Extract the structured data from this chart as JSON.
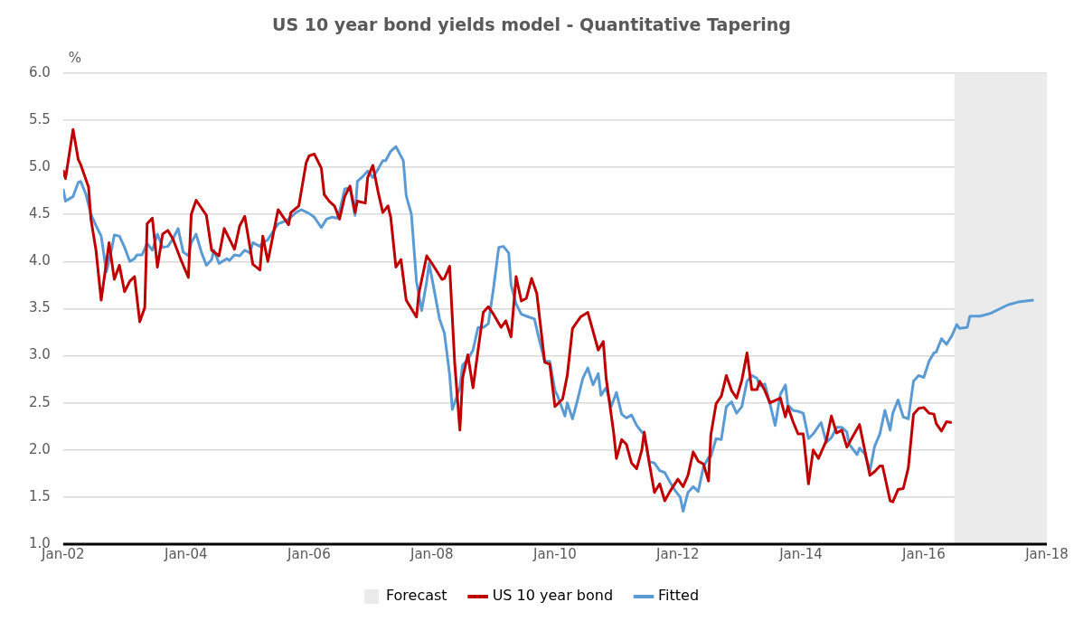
{
  "chart_data": {
    "type": "line",
    "title": "US 10 year bond yields model - Quantitative Tapering",
    "ylabel": "%",
    "xlim": [
      "2002-01-01",
      "2018-01-01"
    ],
    "xticks": [
      {
        "value": "2002-01-01",
        "label": "Jan-02"
      },
      {
        "value": "2004-01-01",
        "label": "Jan-04"
      },
      {
        "value": "2006-01-01",
        "label": "Jan-06"
      },
      {
        "value": "2008-01-01",
        "label": "Jan-08"
      },
      {
        "value": "2010-01-01",
        "label": "Jan-10"
      },
      {
        "value": "2012-01-01",
        "label": "Jan-12"
      },
      {
        "value": "2014-01-01",
        "label": "Jan-14"
      },
      {
        "value": "2016-01-01",
        "label": "Jan-16"
      },
      {
        "value": "2018-01-01",
        "label": "Jan-18"
      }
    ],
    "ylim": [
      1,
      6
    ],
    "yticks": [
      {
        "value": 1,
        "label": "1.0"
      },
      {
        "value": 1.5,
        "label": "1.5"
      },
      {
        "value": 2,
        "label": "2.0"
      },
      {
        "value": 2.5,
        "label": "2.5"
      },
      {
        "value": 3,
        "label": "3.0"
      },
      {
        "value": 3.5,
        "label": "3.5"
      },
      {
        "value": 4,
        "label": "4.0"
      },
      {
        "value": 4.5,
        "label": "4.5"
      },
      {
        "value": 5,
        "label": "5.0"
      },
      {
        "value": 5.5,
        "label": "5.5"
      },
      {
        "value": 6,
        "label": "6.0"
      }
    ],
    "grid": "y",
    "legend": "bottom",
    "line_style": "solid",
    "marker": "none",
    "bands": [
      {
        "axis": "x",
        "from": "2016-07-01",
        "to": "2018-01-01",
        "label": "Forecast",
        "color": "#ebebeb"
      }
    ],
    "series": [
      {
        "name": "US 10 year bond",
        "color": "#c00000",
        "x": [
          "2002-01-01",
          "2002-01-15",
          "2002-03-01",
          "2002-04-01",
          "2002-04-15",
          "2002-06-01",
          "2002-06-15",
          "2002-07-15",
          "2002-08-15",
          "2002-10-01",
          "2002-11-01",
          "2002-12-01",
          "2003-01-01",
          "2003-02-01",
          "2003-03-01",
          "2003-04-01",
          "2003-05-01",
          "2003-05-15",
          "2003-06-15",
          "2003-07-15",
          "2003-08-15",
          "2003-09-15",
          "2003-10-15",
          "2003-12-01",
          "2004-01-15",
          "2004-02-01",
          "2004-03-01",
          "2004-05-01",
          "2004-06-01",
          "2004-07-15",
          "2004-08-15",
          "2004-10-15",
          "2004-11-15",
          "2004-12-15",
          "2005-02-01",
          "2005-03-15",
          "2005-04-01",
          "2005-05-01",
          "2005-07-01",
          "2005-09-01",
          "2005-09-15",
          "2005-11-01",
          "2005-12-15",
          "2006-01-01",
          "2006-02-01",
          "2006-03-15",
          "2006-04-01",
          "2006-05-01",
          "2006-06-01",
          "2006-07-01",
          "2006-08-01",
          "2006-09-01",
          "2006-10-01",
          "2006-10-15",
          "2006-12-01",
          "2006-12-15",
          "2007-01-15",
          "2007-02-15",
          "2007-03-15",
          "2007-04-15",
          "2007-05-01",
          "2007-06-01",
          "2007-07-01",
          "2007-08-01",
          "2007-10-01",
          "2007-10-15",
          "2007-12-01",
          "2008-01-01",
          "2008-01-15",
          "2008-03-01",
          "2008-03-15",
          "2008-04-15",
          "2008-05-15",
          "2008-06-15",
          "2008-07-01",
          "2008-08-01",
          "2008-09-01",
          "2008-10-01",
          "2008-11-01",
          "2008-12-01",
          "2009-01-01",
          "2009-02-15",
          "2009-03-15",
          "2009-04-15",
          "2009-05-15",
          "2009-06-15",
          "2009-07-15",
          "2009-08-15",
          "2009-09-15",
          "2009-11-01",
          "2009-12-01",
          "2010-01-01",
          "2010-02-15",
          "2010-03-15",
          "2010-04-15",
          "2010-06-01",
          "2010-07-15",
          "2010-09-15",
          "2010-10-15",
          "2010-11-01",
          "2010-12-15",
          "2011-01-01",
          "2011-02-01",
          "2011-03-01",
          "2011-04-01",
          "2011-05-01",
          "2011-06-01",
          "2011-06-15",
          "2011-07-15",
          "2011-08-15",
          "2011-09-15",
          "2011-10-15",
          "2011-11-15",
          "2012-01-01",
          "2012-02-01",
          "2012-03-01",
          "2012-04-01",
          "2012-05-01",
          "2012-06-01",
          "2012-07-01",
          "2012-07-15",
          "2012-08-15",
          "2012-09-15",
          "2012-10-15",
          "2012-11-15",
          "2012-12-15",
          "2013-01-15",
          "2013-02-15",
          "2013-03-15",
          "2013-04-15",
          "2013-05-01",
          "2013-06-01",
          "2013-07-01",
          "2013-09-01",
          "2013-10-01",
          "2013-10-15",
          "2013-11-15",
          "2013-12-15",
          "2014-01-15",
          "2014-02-15",
          "2014-03-15",
          "2014-04-15",
          "2014-05-15",
          "2014-06-01",
          "2014-07-01",
          "2014-08-01",
          "2014-09-01",
          "2014-10-01",
          "2014-11-01",
          "2014-12-15",
          "2015-02-15",
          "2015-03-15",
          "2015-04-15",
          "2015-05-01",
          "2015-06-15",
          "2015-07-01",
          "2015-08-01",
          "2015-09-01",
          "2015-10-01",
          "2015-11-01",
          "2015-12-01",
          "2016-01-01",
          "2016-02-01",
          "2016-03-01",
          "2016-03-15",
          "2016-04-15",
          "2016-05-15",
          "2016-06-15"
        ],
        "values": [
          4.97,
          4.88,
          5.4,
          5.08,
          5.03,
          4.79,
          4.45,
          4.12,
          3.59,
          4.2,
          3.81,
          3.96,
          3.68,
          3.79,
          3.84,
          3.36,
          3.51,
          4.4,
          4.46,
          3.94,
          4.29,
          4.33,
          4.24,
          4.02,
          3.83,
          4.5,
          4.65,
          4.49,
          4.12,
          4.06,
          4.35,
          4.13,
          4.38,
          4.48,
          3.97,
          3.91,
          4.27,
          4.0,
          4.55,
          4.39,
          4.52,
          4.59,
          5.05,
          5.12,
          5.14,
          4.99,
          4.71,
          4.64,
          4.59,
          4.45,
          4.69,
          4.8,
          4.52,
          4.64,
          4.62,
          4.89,
          5.02,
          4.74,
          4.52,
          4.59,
          4.47,
          3.94,
          4.02,
          3.59,
          3.41,
          3.66,
          4.06,
          3.98,
          3.94,
          3.81,
          3.82,
          3.95,
          2.93,
          2.21,
          2.76,
          3.01,
          2.66,
          3.06,
          3.46,
          3.52,
          3.44,
          3.3,
          3.37,
          3.2,
          3.84,
          3.58,
          3.61,
          3.82,
          3.66,
          2.93,
          2.91,
          2.46,
          2.54,
          2.79,
          3.29,
          3.41,
          3.46,
          3.06,
          3.15,
          2.76,
          2.19,
          1.91,
          2.11,
          2.06,
          1.86,
          1.8,
          2.0,
          2.19,
          1.86,
          1.55,
          1.64,
          1.46,
          1.56,
          1.69,
          1.61,
          1.73,
          1.98,
          1.88,
          1.85,
          1.67,
          2.16,
          2.49,
          2.57,
          2.79,
          2.63,
          2.55,
          2.74,
          3.03,
          2.64,
          2.64,
          2.73,
          2.63,
          2.5,
          2.55,
          2.35,
          2.46,
          2.3,
          2.17,
          2.17,
          1.64,
          2.0,
          1.91,
          2.03,
          2.1,
          2.36,
          2.18,
          2.21,
          2.03,
          2.13,
          2.27,
          1.73,
          1.77,
          1.83,
          1.83,
          1.46,
          1.45,
          1.58,
          1.59,
          1.81,
          2.38,
          2.44,
          2.45,
          2.39,
          2.38,
          2.28,
          2.2,
          2.3,
          2.29
        ]
      },
      {
        "name": "Fitted",
        "color": "#5b9bd5",
        "x": [
          "2002-01-01",
          "2002-01-15",
          "2002-03-01",
          "2002-04-01",
          "2002-04-15",
          "2002-05-15",
          "2002-06-15",
          "2002-07-15",
          "2002-08-15",
          "2002-09-15",
          "2002-10-15",
          "2002-11-01",
          "2002-12-01",
          "2003-01-01",
          "2003-02-01",
          "2003-03-01",
          "2003-03-15",
          "2003-04-15",
          "2003-05-15",
          "2003-06-15",
          "2003-07-15",
          "2003-08-15",
          "2003-09-15",
          "2003-10-15",
          "2003-11-15",
          "2003-12-15",
          "2004-01-15",
          "2004-02-01",
          "2004-03-01",
          "2004-04-01",
          "2004-05-01",
          "2004-06-01",
          "2004-06-15",
          "2004-07-15",
          "2004-09-01",
          "2004-09-15",
          "2004-10-15",
          "2004-11-15",
          "2004-12-15",
          "2005-01-15",
          "2005-02-01",
          "2005-03-15",
          "2005-04-01",
          "2005-05-01",
          "2005-06-01",
          "2005-07-01",
          "2005-08-01",
          "2005-09-01",
          "2005-10-15",
          "2005-11-15",
          "2006-01-01",
          "2006-02-01",
          "2006-03-15",
          "2006-04-15",
          "2006-05-15",
          "2006-06-15",
          "2006-07-01",
          "2006-08-01",
          "2006-09-01",
          "2006-10-01",
          "2006-10-15",
          "2006-11-15",
          "2006-12-15",
          "2007-01-15",
          "2007-02-15",
          "2007-03-15",
          "2007-04-01",
          "2007-05-01",
          "2007-06-01",
          "2007-07-15",
          "2007-08-01",
          "2007-09-01",
          "2007-10-01",
          "2007-11-01",
          "2007-12-01",
          "2007-12-15",
          "2008-01-15",
          "2008-02-15",
          "2008-03-15",
          "2008-04-15",
          "2008-05-01",
          "2008-06-15",
          "2008-07-01",
          "2008-08-01",
          "2008-09-01",
          "2008-10-01",
          "2008-11-01",
          "2008-12-01",
          "2009-01-01",
          "2009-02-01",
          "2009-03-01",
          "2009-04-01",
          "2009-04-15",
          "2009-05-15",
          "2009-06-15",
          "2009-07-15",
          "2009-09-01",
          "2009-10-01",
          "2009-11-01",
          "2009-12-01",
          "2010-01-01",
          "2010-01-15",
          "2010-03-01",
          "2010-03-15",
          "2010-04-15",
          "2010-05-15",
          "2010-06-15",
          "2010-07-15",
          "2010-08-15",
          "2010-09-15",
          "2010-10-01",
          "2010-11-01",
          "2010-12-01",
          "2011-01-01",
          "2011-02-01",
          "2011-03-01",
          "2011-04-01",
          "2011-05-01",
          "2011-06-01",
          "2011-06-15",
          "2011-07-15",
          "2011-08-15",
          "2011-09-15",
          "2011-10-15",
          "2011-11-15",
          "2011-12-15",
          "2012-01-15",
          "2012-02-01",
          "2012-03-01",
          "2012-04-01",
          "2012-05-01",
          "2012-06-01",
          "2012-07-01",
          "2012-07-15",
          "2012-08-15",
          "2012-09-15",
          "2012-10-15",
          "2012-11-15",
          "2012-12-15",
          "2013-01-15",
          "2013-02-15",
          "2013-03-15",
          "2013-04-15",
          "2013-05-01",
          "2013-06-01",
          "2013-07-01",
          "2013-08-01",
          "2013-09-01",
          "2013-10-01",
          "2013-10-15",
          "2013-11-15",
          "2013-12-15",
          "2014-01-15",
          "2014-02-15",
          "2014-03-15",
          "2014-04-15",
          "2014-05-01",
          "2014-06-01",
          "2014-07-01",
          "2014-08-01",
          "2014-09-01",
          "2014-10-01",
          "2014-10-15",
          "2014-12-01",
          "2014-12-15",
          "2015-01-15",
          "2015-02-15",
          "2015-03-15",
          "2015-04-15",
          "2015-05-15",
          "2015-06-15",
          "2015-07-01",
          "2015-08-01",
          "2015-09-01",
          "2015-10-01",
          "2015-11-01",
          "2015-12-01",
          "2016-01-01",
          "2016-02-01",
          "2016-03-01",
          "2016-03-15",
          "2016-04-15",
          "2016-05-15",
          "2016-06-15",
          "2016-07-15",
          "2016-08-01",
          "2016-09-15",
          "2016-10-01",
          "2016-12-01",
          "2017-02-01",
          "2017-05-15",
          "2017-07-15",
          "2017-10-15"
        ],
        "values": [
          4.77,
          4.64,
          4.69,
          4.84,
          4.85,
          4.72,
          4.5,
          4.38,
          4.27,
          3.89,
          4.12,
          4.28,
          4.27,
          4.15,
          4.0,
          4.03,
          4.07,
          4.07,
          4.19,
          4.12,
          4.29,
          4.15,
          4.16,
          4.24,
          4.35,
          4.1,
          4.06,
          4.2,
          4.29,
          4.1,
          3.96,
          4.02,
          4.12,
          3.98,
          4.03,
          4.01,
          4.07,
          4.06,
          4.12,
          4.09,
          4.2,
          4.16,
          4.2,
          4.23,
          4.32,
          4.4,
          4.42,
          4.45,
          4.52,
          4.55,
          4.51,
          4.47,
          4.36,
          4.45,
          4.47,
          4.46,
          4.53,
          4.77,
          4.78,
          4.49,
          4.85,
          4.9,
          4.96,
          4.89,
          4.98,
          5.07,
          5.07,
          5.17,
          5.22,
          5.07,
          4.7,
          4.5,
          3.79,
          3.48,
          3.79,
          3.98,
          3.69,
          3.39,
          3.24,
          2.8,
          2.43,
          2.66,
          2.9,
          2.96,
          3.06,
          3.3,
          3.3,
          3.34,
          3.72,
          4.15,
          4.16,
          4.09,
          3.75,
          3.55,
          3.44,
          3.42,
          3.39,
          3.16,
          2.94,
          2.94,
          2.63,
          2.58,
          2.36,
          2.5,
          2.33,
          2.53,
          2.76,
          2.87,
          2.69,
          2.81,
          2.58,
          2.66,
          2.46,
          2.61,
          2.38,
          2.34,
          2.37,
          2.26,
          2.19,
          2.17,
          1.88,
          1.86,
          1.78,
          1.76,
          1.66,
          1.57,
          1.5,
          1.35,
          1.55,
          1.61,
          1.56,
          1.82,
          1.92,
          1.93,
          2.12,
          2.11,
          2.46,
          2.51,
          2.39,
          2.46,
          2.73,
          2.79,
          2.76,
          2.68,
          2.7,
          2.49,
          2.26,
          2.59,
          2.69,
          2.48,
          2.42,
          2.41,
          2.39,
          2.12,
          2.17,
          2.25,
          2.29,
          2.08,
          2.13,
          2.24,
          2.24,
          2.19,
          2.06,
          1.95,
          2.02,
          1.96,
          1.78,
          2.04,
          2.17,
          2.42,
          2.21,
          2.39,
          2.53,
          2.35,
          2.33,
          2.73,
          2.79,
          2.77,
          2.94,
          3.03,
          3.04,
          3.18,
          3.12,
          3.21,
          3.33,
          3.29,
          3.3,
          3.42,
          3.42,
          3.45,
          3.54,
          3.57,
          3.59
        ]
      }
    ]
  }
}
